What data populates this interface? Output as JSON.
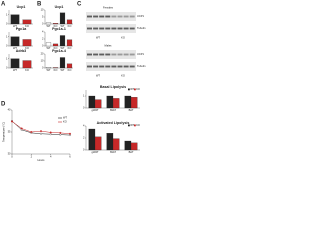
{
  "panel_labels": [
    "A",
    "B",
    "C",
    "D"
  ],
  "blots": [
    {
      "label": "Females",
      "bands": [
        "UCP1",
        "Tubulin"
      ],
      "lanes": [
        "WT",
        "KO"
      ]
    },
    {
      "label": "Males",
      "bands": [
        "UCP1",
        "Tubulin"
      ],
      "lanes": [
        "WT",
        "KO"
      ]
    }
  ],
  "chart_data": [
    {
      "type": "bar",
      "title": "Ucp1",
      "categories": [
        "WT",
        "KO"
      ],
      "values": [
        1,
        0.45
      ],
      "colors": [
        "#222222",
        "#c62828"
      ],
      "ylim": [
        0,
        1.5
      ],
      "yticks": [
        0,
        1
      ]
    },
    {
      "type": "bar",
      "title": "Pgc1a",
      "categories": [
        "WT",
        "KO"
      ],
      "values": [
        1,
        0.7
      ],
      "colors": [
        "#222222",
        "#c62828"
      ],
      "ylim": [
        0,
        1.5
      ],
      "yticks": [
        0,
        1
      ]
    },
    {
      "type": "bar",
      "title": "Adrb3",
      "categories": [
        "WT",
        "KO"
      ],
      "values": [
        1,
        0.8
      ],
      "colors": [
        "#222222",
        "#c62828"
      ],
      "ylim": [
        0,
        1.5
      ],
      "yticks": [
        0,
        1
      ]
    },
    {
      "type": "bar",
      "title": "Ucp1",
      "categories": [
        "WT",
        "KO",
        "WT",
        "KO"
      ],
      "values": [
        1,
        0.5,
        8,
        3
      ],
      "colors": [
        "#ffffff",
        "#c62828",
        "#222222",
        "#c62828"
      ],
      "ylim": [
        0,
        10
      ],
      "yticks": [
        0,
        5,
        10
      ]
    },
    {
      "type": "bar",
      "title": "Pgc1a-1",
      "categories": [
        "WT",
        "KO",
        "WT",
        "KO"
      ],
      "values": [
        1,
        0.6,
        3,
        1.8
      ],
      "colors": [
        "#ffffff",
        "#c62828",
        "#222222",
        "#c62828"
      ],
      "ylim": [
        0,
        4
      ],
      "yticks": [
        0,
        2,
        4
      ]
    },
    {
      "type": "bar",
      "title": "Pgc1a-4",
      "categories": [
        "WT",
        "KO",
        "WT",
        "KO"
      ],
      "values": [
        1,
        0.7,
        15,
        6
      ],
      "colors": [
        "#ffffff",
        "#c62828",
        "#222222",
        "#c62828"
      ],
      "ylim": [
        0,
        20
      ],
      "yticks": [
        0,
        10,
        20
      ]
    },
    {
      "type": "bar",
      "title": "Basal Lipolysis",
      "categories": [
        "gWAT",
        "iWAT",
        "BAT"
      ],
      "series": [
        {
          "name": "WT",
          "color": "#222222",
          "values": [
            1,
            1,
            1
          ]
        },
        {
          "name": "KO",
          "color": "#c62828",
          "values": [
            0.7,
            0.8,
            0.9
          ]
        }
      ],
      "ylim": [
        0,
        1.5
      ],
      "yticks": [
        0,
        1
      ]
    },
    {
      "type": "bar",
      "title": "Activated Lipolysis",
      "categories": [
        "gWAT",
        "iWAT",
        "BAT"
      ],
      "series": [
        {
          "name": "WT",
          "color": "#222222",
          "values": [
            3.5,
            2.8,
            1.5
          ]
        },
        {
          "name": "KO",
          "color": "#c62828",
          "values": [
            2.2,
            1.9,
            1.2
          ]
        }
      ],
      "ylim": [
        0,
        4
      ],
      "yticks": [
        0,
        2,
        4
      ]
    },
    {
      "type": "line",
      "xlabel": "Hours",
      "ylabel": "Temperature (°C)",
      "x": [
        0,
        1,
        2,
        3,
        4,
        5,
        6
      ],
      "series": [
        {
          "name": "WT",
          "color": "#222222",
          "values": [
            37.5,
            35.5,
            34.8,
            34.6,
            34.5,
            34.4,
            34.3
          ]
        },
        {
          "name": "KO",
          "color": "#c62828",
          "values": [
            37.4,
            35.8,
            35.0,
            35.2,
            34.9,
            34.8,
            34.6
          ]
        }
      ],
      "xlim": [
        0,
        6
      ],
      "xticks": [
        0,
        2,
        4,
        6
      ],
      "ylim": [
        30,
        40
      ],
      "yticks": [
        30,
        35,
        40
      ]
    }
  ]
}
